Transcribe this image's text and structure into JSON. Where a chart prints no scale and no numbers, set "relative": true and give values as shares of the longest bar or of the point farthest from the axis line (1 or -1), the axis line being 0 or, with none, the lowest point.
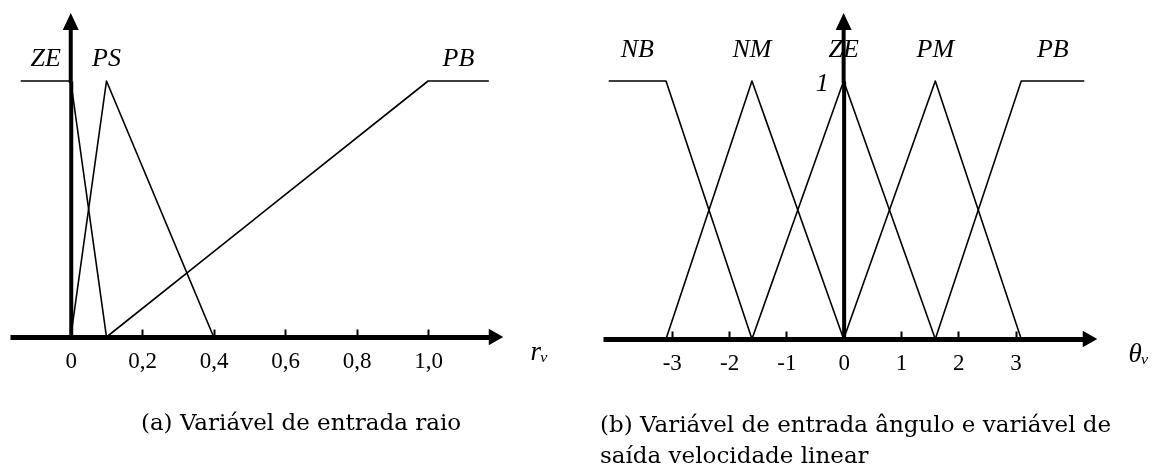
{
  "chart_data": [
    {
      "type": "line",
      "title": "(a) Variável de entrada raio",
      "xlabel": "rᵥ",
      "relative": true,
      "xlim": [
        -0.17,
        1.19
      ],
      "xticks": [
        0,
        {
          "value": 0.2,
          "label": "0,2"
        },
        {
          "value": 0.4,
          "label": "0,4"
        },
        {
          "value": 0.6,
          "label": "0,6"
        },
        {
          "value": 0.8,
          "label": "0,8"
        },
        {
          "value": 1,
          "label": "1,0"
        }
      ],
      "series": [
        {
          "name": "ZE",
          "color": "#000000",
          "x": [
            -0.14,
            0,
            0.1
          ],
          "values": [
            1,
            1,
            0
          ]
        },
        {
          "name": "PS",
          "color": "#000000",
          "x": [
            0,
            0.1,
            0.4
          ],
          "values": [
            0,
            1,
            0
          ]
        },
        {
          "name": "PB",
          "color": "#000000",
          "x": [
            0.1,
            1,
            1.17
          ],
          "values": [
            0,
            1,
            1
          ]
        }
      ]
    },
    {
      "type": "line",
      "title": "(b) Variável de entrada ângulo e variável de saída velocidade linear",
      "xlabel": "θᵥ",
      "relative": true,
      "xlim": [
        -4.2,
        4.3
      ],
      "xticks": [
        -3,
        -2,
        -1,
        0,
        1,
        2,
        3
      ],
      "annotations": [
        {
          "text": "1",
          "x": 0,
          "y": 1
        }
      ],
      "series": [
        {
          "name": "NB",
          "color": "#000000",
          "x": [
            -4.1,
            -3.1,
            -1.6
          ],
          "values": [
            1,
            1,
            0
          ]
        },
        {
          "name": "NM",
          "color": "#000000",
          "x": [
            -3.1,
            -1.6,
            0
          ],
          "values": [
            0,
            1,
            0
          ]
        },
        {
          "name": "ZE",
          "color": "#000000",
          "x": [
            -1.6,
            0,
            1.6
          ],
          "values": [
            0,
            1,
            0
          ]
        },
        {
          "name": "PM",
          "color": "#000000",
          "x": [
            0,
            1.6,
            3.1
          ],
          "values": [
            0,
            1,
            0
          ]
        },
        {
          "name": "PB",
          "color": "#000000",
          "x": [
            1.6,
            3.1,
            4.2
          ],
          "values": [
            0,
            1,
            1
          ]
        }
      ]
    }
  ]
}
